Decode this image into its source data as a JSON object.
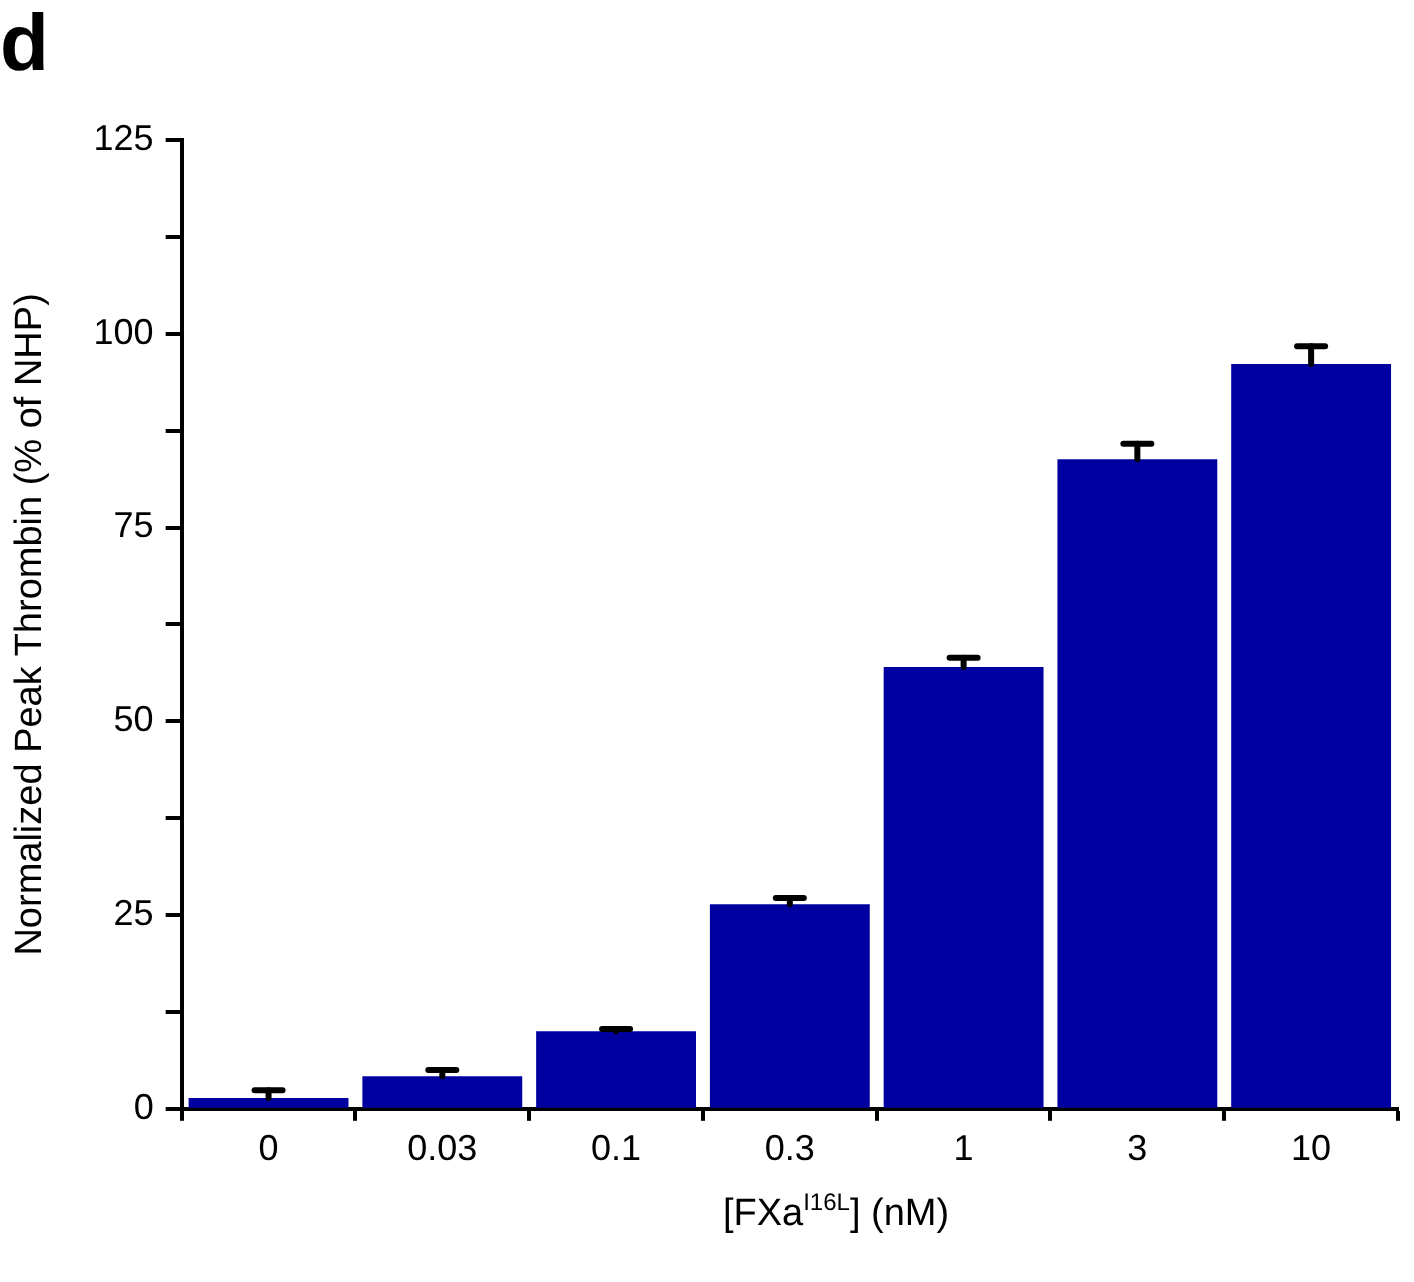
{
  "chart_data": {
    "type": "bar",
    "title": "d",
    "xlabel": "[FXa$^{I16L}$] (nM)",
    "ylabel": "Normalized Peak Thrombin (% of NHP)",
    "categories": [
      "0",
      "0.03",
      "0.1",
      "0.3",
      "1",
      "3",
      "10"
    ],
    "values": [
      1.4,
      4.2,
      10.0,
      26.4,
      57.0,
      83.8,
      96.1
    ],
    "errors": [
      [
        1.4,
        2.4
      ],
      [
        4.2,
        5.0
      ],
      [
        10.0,
        10.3
      ],
      [
        26.4,
        27.2
      ],
      [
        57.0,
        58.2
      ],
      [
        83.8,
        85.8
      ],
      [
        96.1,
        98.4
      ]
    ],
    "color": "#0000a0",
    "ylim": [
      0,
      125
    ],
    "yticks": [
      0,
      {
        "value": 12.5,
        "label": null
      },
      25,
      {
        "value": 37.5,
        "label": null
      },
      50,
      {
        "value": 62.5,
        "label": null
      },
      75,
      {
        "value": 87.5,
        "label": null
      },
      100,
      {
        "value": 112.5,
        "label": null
      },
      125
    ],
    "grid": false,
    "legend": false
  }
}
